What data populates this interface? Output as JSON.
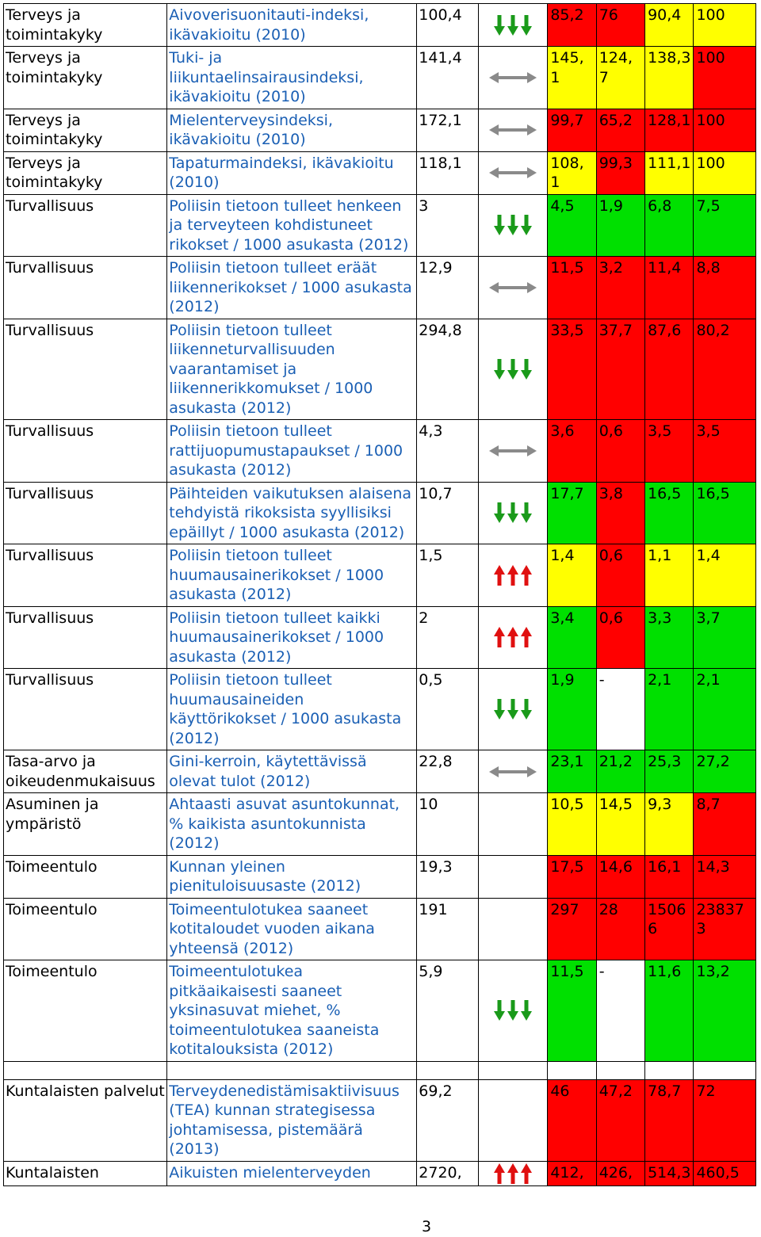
{
  "rows": [
    {
      "category": "Terveys ja toimintakyky",
      "indicator": "Aivoverisuonitauti-indeksi, ikävakioitu (2010)",
      "value": "100,4",
      "trend": "down",
      "cells": [
        {
          "v": "85,2",
          "c": "red"
        },
        {
          "v": "76",
          "c": "red"
        },
        {
          "v": "90,4",
          "c": "yellow"
        },
        {
          "v": "100",
          "c": "yellow"
        }
      ]
    },
    {
      "category": "Terveys ja toimintakyky",
      "indicator": "Tuki- ja liikuntaelinsairausindeksi, ikävakioitu (2010)",
      "value": "141,4",
      "trend": "flat",
      "cells": [
        {
          "v": "145, 1",
          "c": "yellow"
        },
        {
          "v": "124, 7",
          "c": "yellow"
        },
        {
          "v": "138,3",
          "c": "yellow"
        },
        {
          "v": "100",
          "c": "red"
        }
      ]
    },
    {
      "category": "Terveys ja toimintakyky",
      "indicator": "Mielenterveysindeksi, ikävakioitu (2010)",
      "value": "172,1",
      "trend": "flat",
      "cells": [
        {
          "v": "99,7",
          "c": "red"
        },
        {
          "v": "65,2",
          "c": "red"
        },
        {
          "v": "128,1",
          "c": "red"
        },
        {
          "v": "100",
          "c": "red"
        }
      ]
    },
    {
      "category": "Terveys ja toimintakyky",
      "indicator": "Tapaturmaindeksi, ikävakioitu (2010)",
      "value": "118,1",
      "trend": "flat",
      "cells": [
        {
          "v": "108, 1",
          "c": "yellow"
        },
        {
          "v": "99,3",
          "c": "red"
        },
        {
          "v": "111,1",
          "c": "yellow"
        },
        {
          "v": "100",
          "c": "yellow"
        }
      ]
    },
    {
      "category": "Turvallisuus",
      "indicator": "Poliisin tietoon tulleet henkeen ja terveyteen kohdistuneet rikokset / 1000 asukasta (2012)",
      "value": "3",
      "trend": "down",
      "cells": [
        {
          "v": "4,5",
          "c": "green"
        },
        {
          "v": "1,9",
          "c": "green"
        },
        {
          "v": "6,8",
          "c": "green"
        },
        {
          "v": "7,5",
          "c": "green"
        }
      ]
    },
    {
      "category": "Turvallisuus",
      "indicator": "Poliisin tietoon tulleet eräät liikennerikokset / 1000 asukasta (2012)",
      "value": "12,9",
      "trend": "flat",
      "cells": [
        {
          "v": "11,5",
          "c": "red"
        },
        {
          "v": "3,2",
          "c": "red"
        },
        {
          "v": "11,4",
          "c": "red"
        },
        {
          "v": "8,8",
          "c": "red"
        }
      ]
    },
    {
      "category": "Turvallisuus",
      "indicator": "Poliisin tietoon tulleet liikenneturvallisuuden vaarantamiset ja liikennerikkomukset / 1000 asukasta (2012)",
      "value": "294,8",
      "trend": "down",
      "cells": [
        {
          "v": "33,5",
          "c": "red"
        },
        {
          "v": "37,7",
          "c": "red"
        },
        {
          "v": "87,6",
          "c": "red"
        },
        {
          "v": "80,2",
          "c": "red"
        }
      ]
    },
    {
      "category": "Turvallisuus",
      "indicator": "Poliisin tietoon tulleet rattijuopumustapaukset / 1000 asukasta (2012)",
      "value": "4,3",
      "trend": "flat",
      "cells": [
        {
          "v": "3,6",
          "c": "red"
        },
        {
          "v": "0,6",
          "c": "red"
        },
        {
          "v": "3,5",
          "c": "red"
        },
        {
          "v": "3,5",
          "c": "red"
        }
      ]
    },
    {
      "category": "Turvallisuus",
      "indicator": "Päihteiden vaikutuksen alaisena tehdyistä rikoksista syyllisiksi epäillyt / 1000 asukasta (2012)",
      "value": "10,7",
      "trend": "down",
      "cells": [
        {
          "v": "17,7",
          "c": "green"
        },
        {
          "v": "3,8",
          "c": "red"
        },
        {
          "v": "16,5",
          "c": "green"
        },
        {
          "v": "16,5",
          "c": "green"
        }
      ]
    },
    {
      "category": "Turvallisuus",
      "indicator": "Poliisin tietoon tulleet huumausainerikokset / 1000 asukasta (2012)",
      "value": "1,5",
      "trend": "up",
      "cells": [
        {
          "v": "1,4",
          "c": "yellow"
        },
        {
          "v": "0,6",
          "c": "red"
        },
        {
          "v": "1,1",
          "c": "yellow"
        },
        {
          "v": "1,4",
          "c": "yellow"
        }
      ]
    },
    {
      "category": "Turvallisuus",
      "indicator": "Poliisin tietoon tulleet kaikki huumausainerikokset / 1000 asukasta (2012)",
      "value": "2",
      "trend": "up",
      "cells": [
        {
          "v": "3,4",
          "c": "green"
        },
        {
          "v": "0,6",
          "c": "red"
        },
        {
          "v": "3,3",
          "c": "green"
        },
        {
          "v": "3,7",
          "c": "green"
        }
      ]
    },
    {
      "category": "Turvallisuus",
      "indicator": "Poliisin tietoon tulleet huumausaineiden käyttörikokset / 1000 asukasta (2012)",
      "value": "0,5",
      "trend": "down",
      "cells": [
        {
          "v": "1,9",
          "c": "green"
        },
        {
          "v": "-",
          "c": "white"
        },
        {
          "v": "2,1",
          "c": "green"
        },
        {
          "v": "2,1",
          "c": "green"
        }
      ]
    },
    {
      "category": "Tasa-arvo ja oikeudenmukaisuus",
      "indicator": "Gini-kerroin, käytettävissä olevat tulot (2012)",
      "value": "22,8",
      "trend": "flat",
      "cells": [
        {
          "v": "23,1",
          "c": "green"
        },
        {
          "v": "21,2",
          "c": "green"
        },
        {
          "v": "25,3",
          "c": "green"
        },
        {
          "v": "27,2",
          "c": "green"
        }
      ]
    },
    {
      "category": "Asuminen ja ympäristö",
      "indicator": "Ahtaasti asuvat asuntokunnat, % kaikista asuntokunnista (2012)",
      "value": "10",
      "trend": "",
      "cells": [
        {
          "v": "10,5",
          "c": "yellow"
        },
        {
          "v": "14,5",
          "c": "yellow"
        },
        {
          "v": "9,3",
          "c": "yellow"
        },
        {
          "v": "8,7",
          "c": "red"
        }
      ]
    },
    {
      "category": "Toimeentulo",
      "indicator": "Kunnan yleinen pienituloisuusaste (2012)",
      "value": "19,3",
      "trend": "",
      "cells": [
        {
          "v": "17,5",
          "c": "red"
        },
        {
          "v": "14,6",
          "c": "red"
        },
        {
          "v": "16,1",
          "c": "red"
        },
        {
          "v": "14,3",
          "c": "red"
        }
      ]
    },
    {
      "category": "Toimeentulo",
      "indicator": "Toimeentulotukea saaneet kotitaloudet vuoden aikana yhteensä (2012)",
      "value": "191",
      "trend": "",
      "cells": [
        {
          "v": "297",
          "c": "red"
        },
        {
          "v": "28",
          "c": "red"
        },
        {
          "v": "1506 6",
          "c": "red"
        },
        {
          "v": "23837 3",
          "c": "red"
        }
      ]
    },
    {
      "category": "Toimeentulo",
      "indicator": "Toimeentulotukea pitkäaikaisesti saaneet yksinasuvat miehet, % toimeentulotukea saaneista kotitalouksista (2012)",
      "value": "5,9",
      "trend": "down",
      "cells": [
        {
          "v": "11,5",
          "c": "green"
        },
        {
          "v": "-",
          "c": "white"
        },
        {
          "v": "11,6",
          "c": "green"
        },
        {
          "v": "13,2",
          "c": "green"
        }
      ]
    },
    {
      "spacer": true
    },
    {
      "category": "Kuntalaisten palvelut",
      "indicator": "Terveydenedistämisaktiivisuus (TEA) kunnan strategisessa johtamisessa, pistemäärä (2013)",
      "value": "69,2",
      "trend": "",
      "cells": [
        {
          "v": "46",
          "c": "red"
        },
        {
          "v": "47,2",
          "c": "red"
        },
        {
          "v": "78,7",
          "c": "red"
        },
        {
          "v": "72",
          "c": "red"
        }
      ]
    },
    {
      "category": "Kuntalaisten",
      "indicator": "Aikuisten mielenterveyden",
      "value": "2720,",
      "trend": "up",
      "cells": [
        {
          "v": "412,",
          "c": "red"
        },
        {
          "v": "426,",
          "c": "red"
        },
        {
          "v": "514,3",
          "c": "red"
        },
        {
          "v": "460,5",
          "c": "red"
        }
      ]
    }
  ],
  "page_number": "3",
  "colors": {
    "red": "#ff0000",
    "yellow": "#ffff00",
    "green": "#00e000",
    "arrow_down": "#1a9a1a",
    "arrow_up": "#e01010",
    "arrow_flat": "#8a8a8a"
  }
}
